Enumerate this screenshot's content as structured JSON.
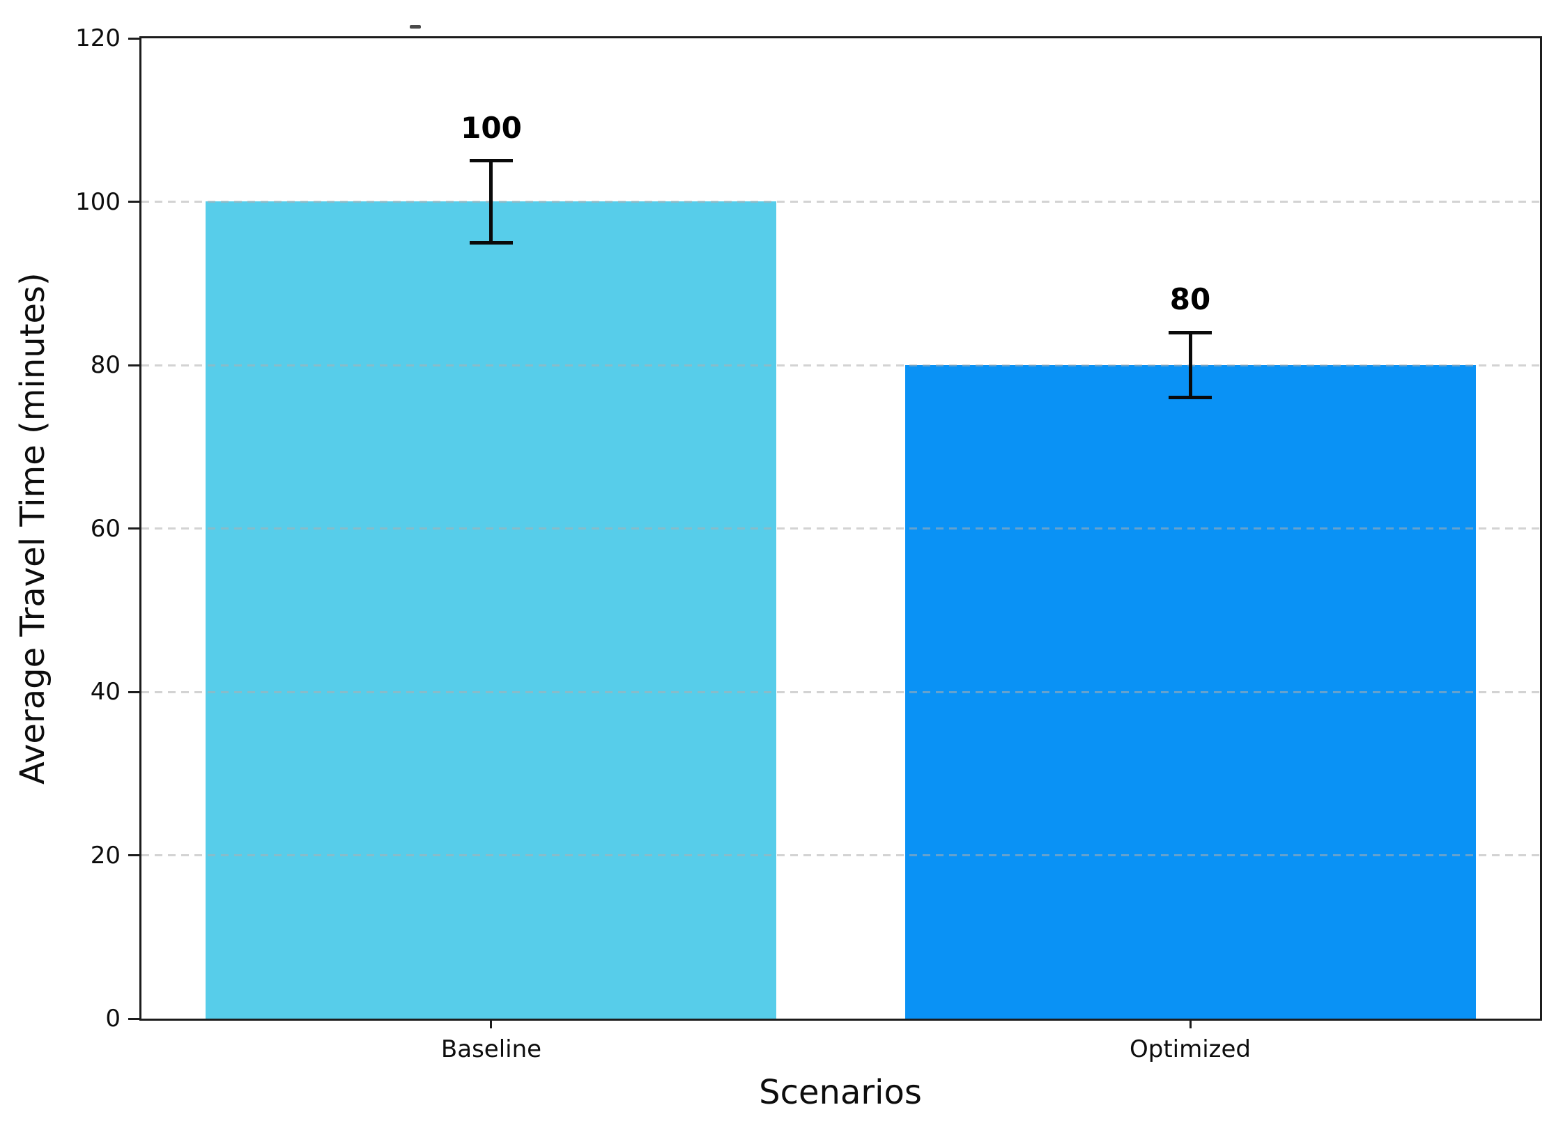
{
  "chart_data": {
    "type": "bar",
    "title": "",
    "top_mark": "dash",
    "categories": [
      "Baseline",
      "Optimized"
    ],
    "values": [
      100,
      80
    ],
    "errors": [
      5,
      4
    ],
    "bar_labels": [
      "100",
      "80"
    ],
    "bar_colors": [
      "#57CDEA",
      "#0A92F5"
    ],
    "xlabel": "Scenarios",
    "ylabel": "Average Travel Time (minutes)",
    "ylim": [
      0,
      120
    ],
    "yticks": [
      0,
      20,
      40,
      60,
      80,
      100,
      120
    ],
    "ytick_labels": [
      "0",
      "20",
      "40",
      "60",
      "80",
      "100",
      "120"
    ],
    "grid": "horizontal dashed gridlines at y ticks, drawn above bars",
    "legend": "none",
    "error_bar_color": "#0a0a0a",
    "spine_color": "#1c1c1c",
    "gridline_color": "#afafaf"
  }
}
